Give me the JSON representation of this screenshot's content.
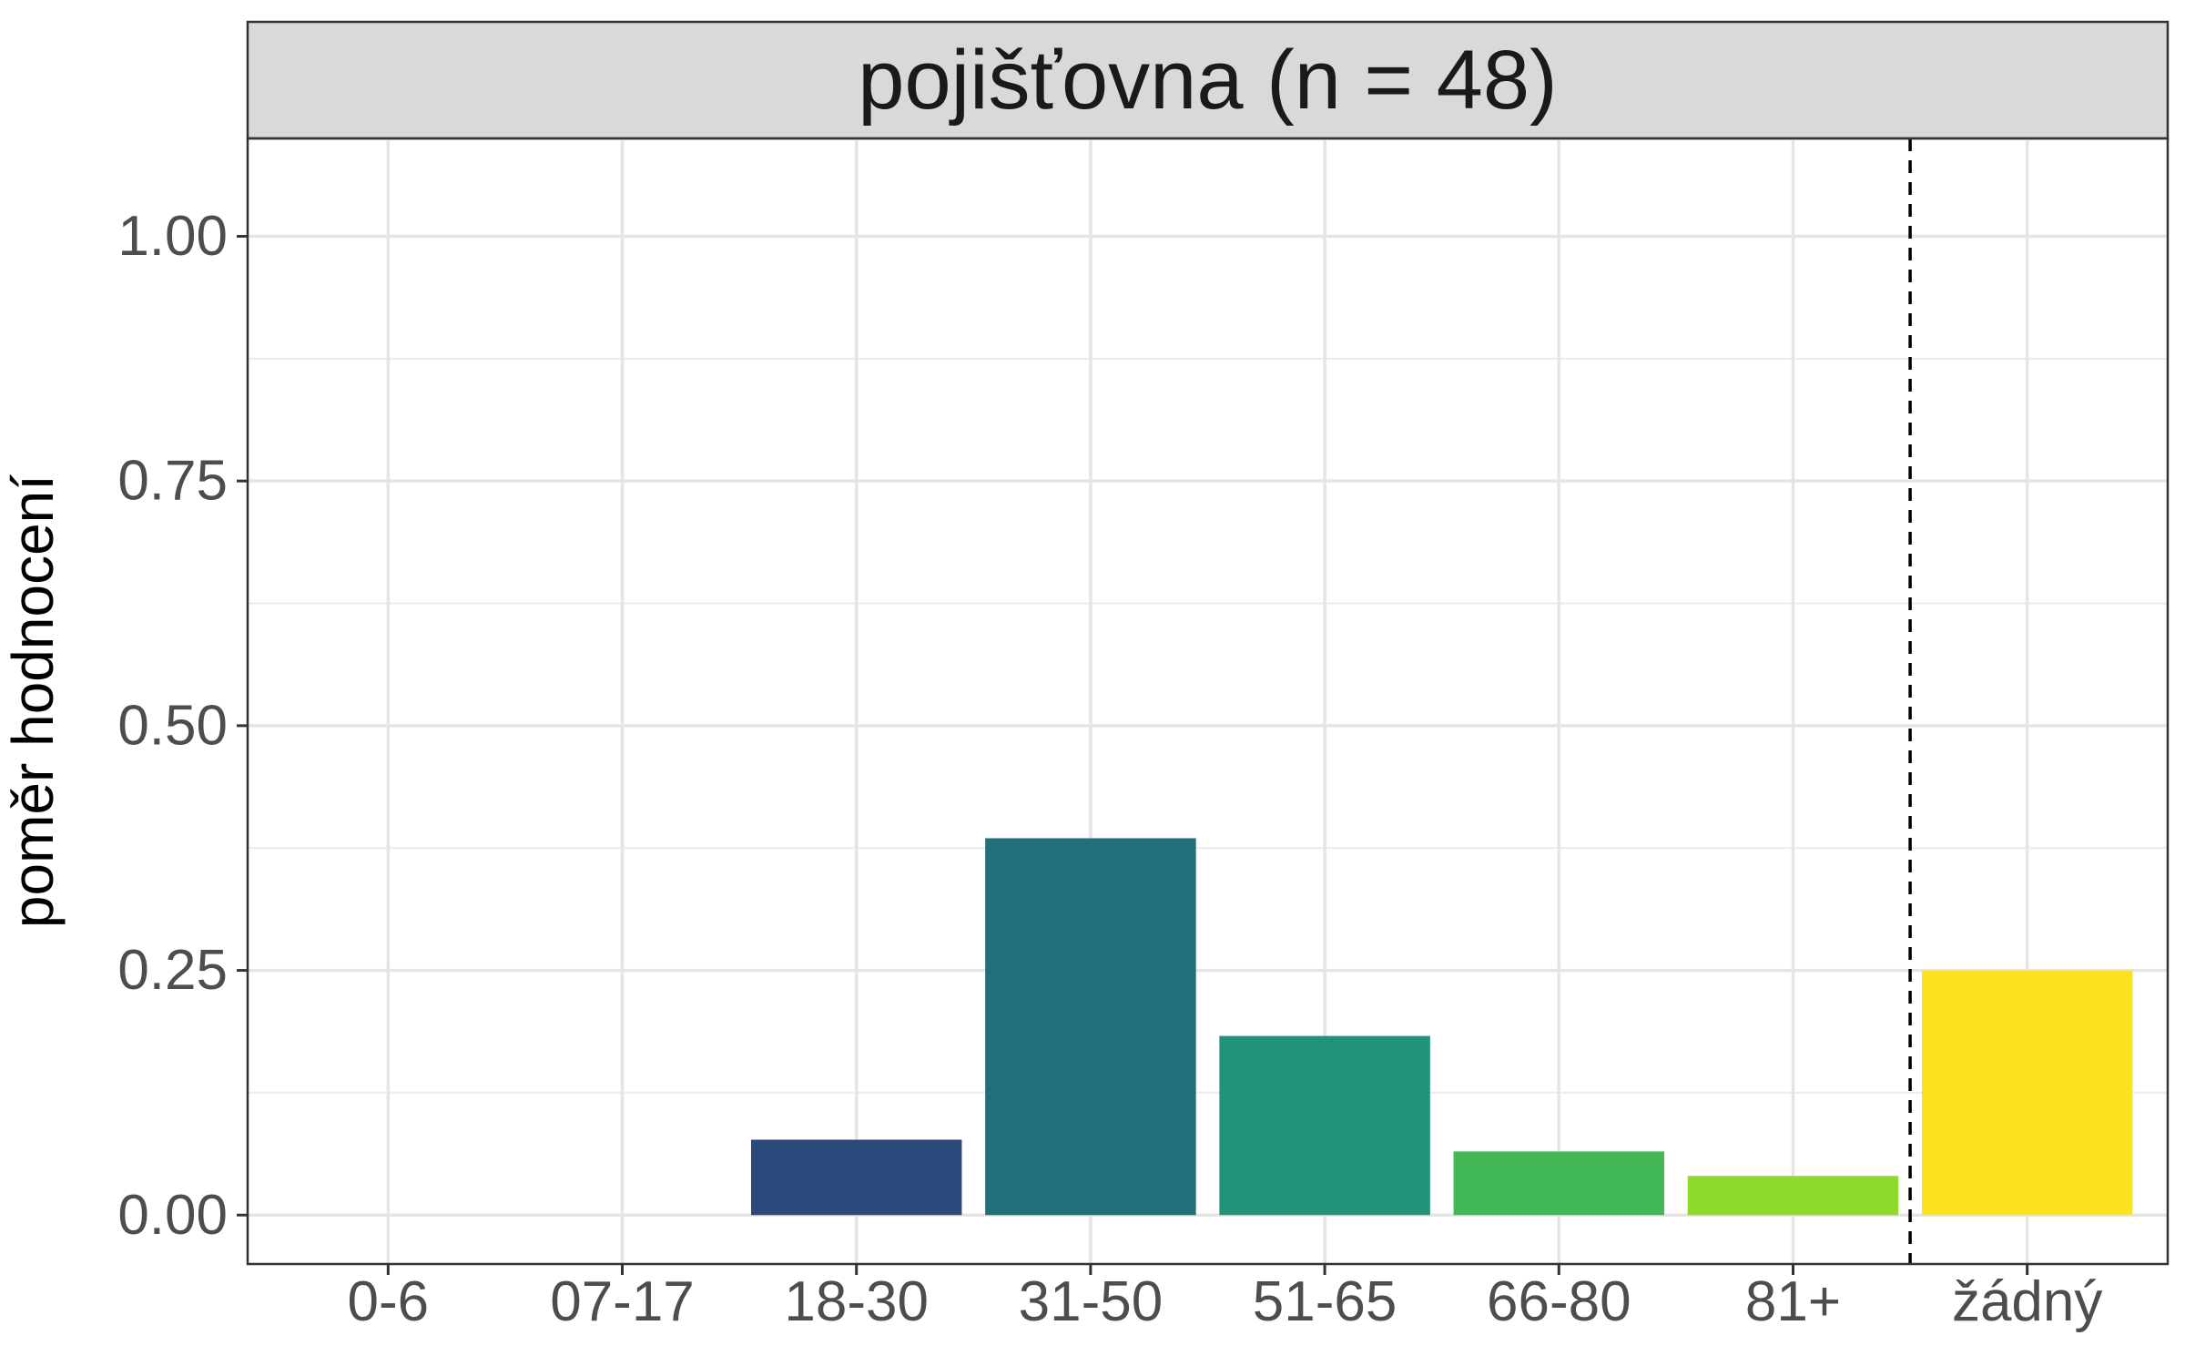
{
  "chart_data": {
    "type": "bar",
    "facet_title": "pojišťovna (n = 48)",
    "xlabel": "",
    "ylabel": "poměr hodnocení",
    "categories": [
      "0-6",
      "07-17",
      "18-30",
      "31-50",
      "51-65",
      "66-80",
      "81+",
      "žádný"
    ],
    "values": [
      0,
      0,
      0.077,
      0.385,
      0.183,
      0.065,
      0.04,
      0.25
    ],
    "bar_colors": [
      "#440154",
      "#46327e",
      "#2a4a7c",
      "#226f7c",
      "#21937a",
      "#42b956",
      "#8fd82c",
      "#fde31f"
    ],
    "ylim": [
      -0.05,
      1.1
    ],
    "yticks": [
      0,
      0.25,
      0.5,
      0.75,
      1.0
    ],
    "ytick_labels": [
      "0.00",
      "0.25",
      "0.50",
      "0.75",
      "1.00"
    ],
    "reference_line": {
      "style": "dashed",
      "between": [
        "81+",
        "žádný"
      ]
    },
    "grid": true,
    "legend": "none"
  }
}
